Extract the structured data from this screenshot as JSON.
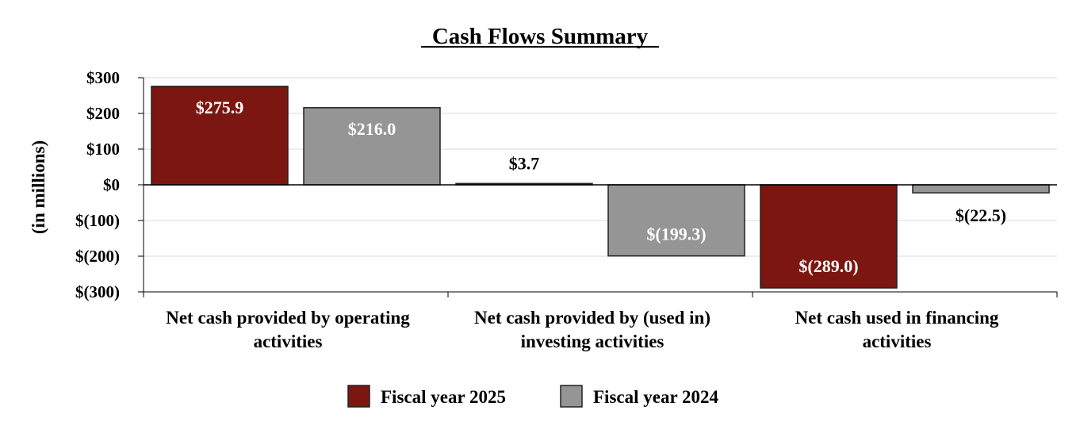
{
  "chart_data": {
    "type": "bar",
    "title": "Cash Flows Summary",
    "xlabel": "",
    "ylabel": "(in millions)",
    "ylim": [
      -300,
      300
    ],
    "yticks": [
      300,
      200,
      100,
      0,
      -100,
      -200,
      -300
    ],
    "ytick_labels": [
      "$300",
      "$200",
      "$100",
      "$0",
      "$(100)",
      "$(200)",
      "$(300)"
    ],
    "grid": true,
    "legend_position": "bottom",
    "categories": [
      [
        "Net cash provided by operating",
        "activities"
      ],
      [
        "Net cash provided by (used in)",
        "investing activities"
      ],
      [
        "Net cash used in financing",
        "activities"
      ]
    ],
    "series": [
      {
        "name": "Fiscal year 2025",
        "color": "#7b1710",
        "values": [
          275.9,
          3.7,
          -289.0
        ],
        "labels": [
          "$275.9",
          "$3.7",
          "$(289.0)"
        ]
      },
      {
        "name": "Fiscal year 2024",
        "color": "#959595",
        "values": [
          216.0,
          -199.3,
          -22.5
        ],
        "labels": [
          "$216.0",
          "$(199.3)",
          "$(22.5)"
        ]
      }
    ]
  }
}
